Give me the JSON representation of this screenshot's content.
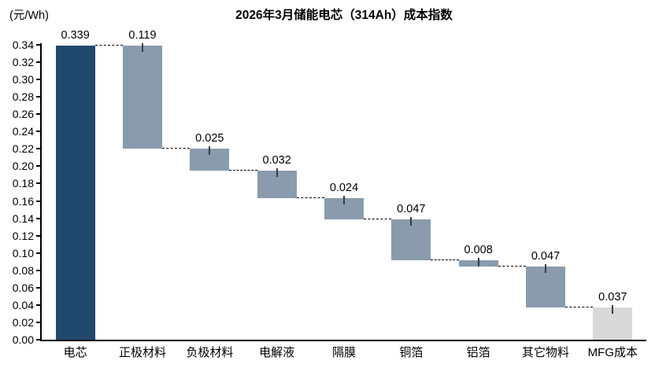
{
  "chart_data": {
    "type": "bar",
    "subtype": "waterfall",
    "title": "2026年3月储能电芯（314Ah）成本指数",
    "ylabel": "(元/Wh)",
    "xlabel": "",
    "categories": [
      "电芯",
      "正极材料",
      "负极材料",
      "电解液",
      "隔膜",
      "铜箔",
      "铝箔",
      "其它物料",
      "MFG成本"
    ],
    "values": [
      0.339,
      0.119,
      0.025,
      0.032,
      0.024,
      0.047,
      0.008,
      0.047,
      0.037
    ],
    "value_labels": [
      "0.339",
      "0.119",
      "0.025",
      "0.032",
      "0.024",
      "0.047",
      "0.008",
      "0.047",
      "0.037"
    ],
    "running_totals": [
      0.339,
      0.22,
      0.195,
      0.163,
      0.139,
      0.092,
      0.084,
      0.037,
      0.0
    ],
    "ylim": [
      0.0,
      0.34
    ],
    "ytick_step": 0.02,
    "yticks": [
      "0.00",
      "0.02",
      "0.04",
      "0.06",
      "0.08",
      "0.10",
      "0.12",
      "0.14",
      "0.16",
      "0.18",
      "0.20",
      "0.22",
      "0.24",
      "0.26",
      "0.28",
      "0.30",
      "0.32",
      "0.34"
    ],
    "grid": false,
    "legend": null,
    "colors": {
      "total_bar": "#21496D",
      "component_bar": "#8A9BAD",
      "last_bar": "#D9D9D9",
      "axis": "#000000",
      "connector": "#000000",
      "label_text": "#000000"
    }
  }
}
